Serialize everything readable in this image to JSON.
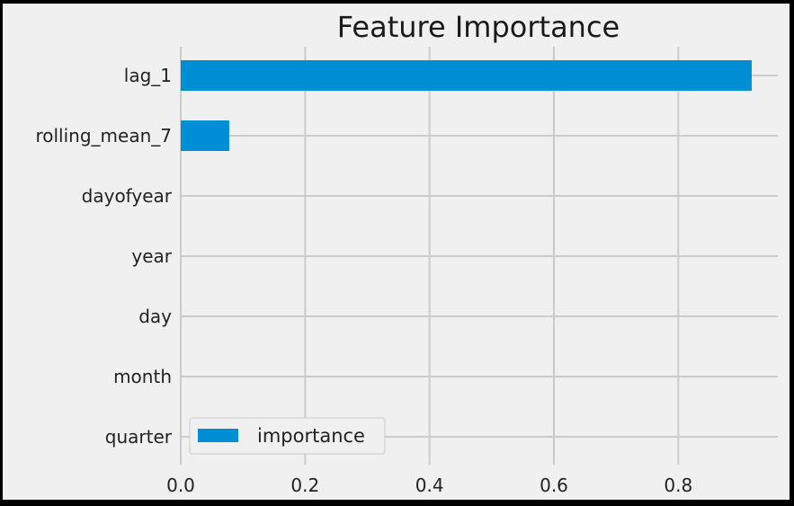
{
  "chart_data": {
    "type": "bar",
    "orientation": "horizontal",
    "title": "Feature Importance",
    "xlabel": "",
    "ylabel": "",
    "categories": [
      "lag_1",
      "rolling_mean_7",
      "dayofyear",
      "year",
      "day",
      "month",
      "quarter"
    ],
    "series": [
      {
        "name": "importance",
        "color": "#008fd5",
        "values": [
          0.918,
          0.078,
          0.0,
          0.0,
          0.0,
          0.0,
          0.0
        ]
      }
    ],
    "xlim": [
      0.0,
      0.96
    ],
    "xticks": [
      "0.0",
      "0.2",
      "0.4",
      "0.6",
      "0.8"
    ],
    "grid": true,
    "legend": "lower-left",
    "colors": {
      "figure_background": "#f0f0f0",
      "plot_background": "#f0f0f0",
      "grid": "#cbcbcb",
      "outer_border": "#000000"
    }
  }
}
